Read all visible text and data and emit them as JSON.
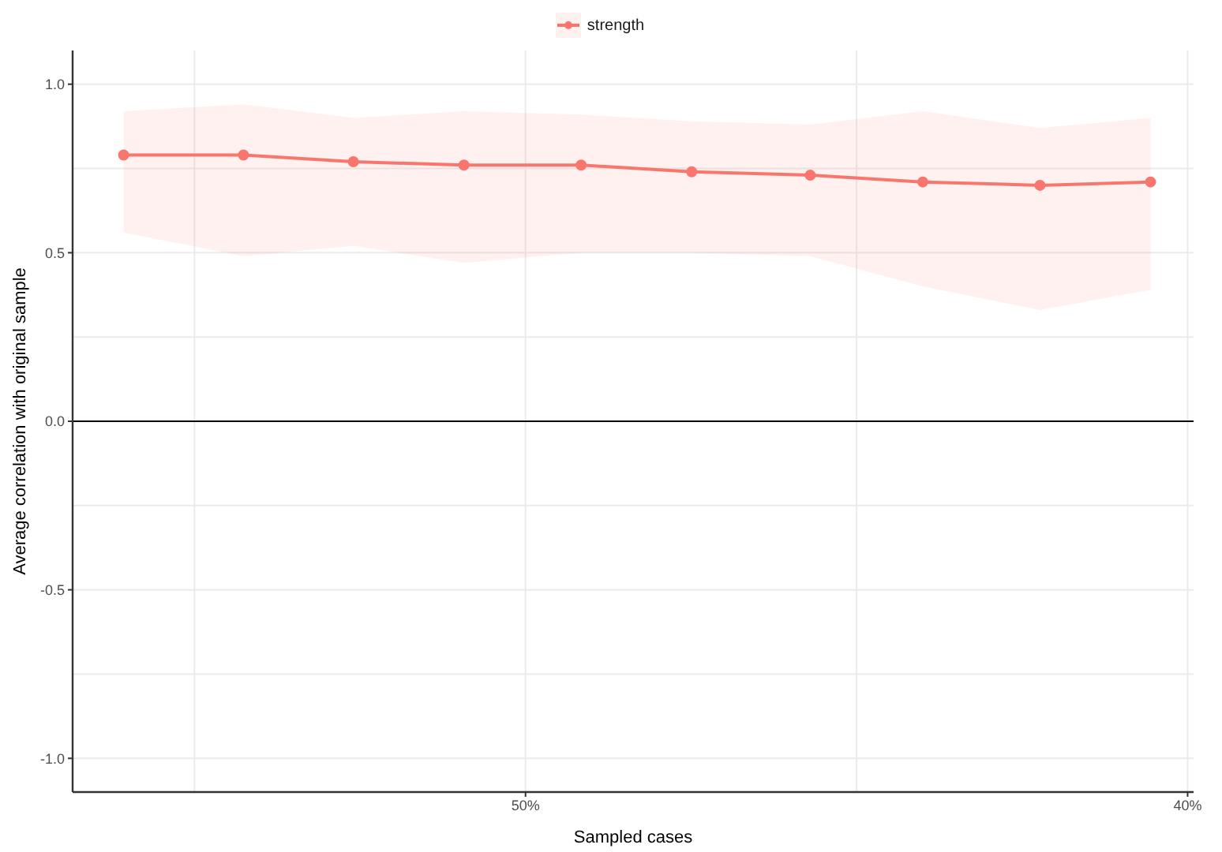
{
  "chart_data": {
    "type": "line",
    "xlabel": "Sampled cases",
    "ylabel": "Average correlation with original sample",
    "x": [
      56.07,
      54.26,
      52.6,
      50.93,
      49.16,
      47.49,
      45.7,
      44.0,
      42.23,
      40.56
    ],
    "series": [
      {
        "name": "strength",
        "color": "#f8766d",
        "values": [
          0.79,
          0.79,
          0.77,
          0.76,
          0.76,
          0.74,
          0.73,
          0.71,
          0.7,
          0.71
        ],
        "lower": [
          0.56,
          0.49,
          0.52,
          0.47,
          0.5,
          0.5,
          0.49,
          0.4,
          0.33,
          0.39
        ],
        "upper": [
          0.92,
          0.94,
          0.9,
          0.92,
          0.91,
          0.89,
          0.88,
          0.92,
          0.87,
          0.9
        ]
      }
    ],
    "xlim": [
      56.84,
      39.91
    ],
    "xticks": [
      {
        "value": 50,
        "label": "50%"
      },
      {
        "value": 40,
        "label": "40%"
      }
    ],
    "ylim": [
      -1.1,
      1.1
    ],
    "yticks": [
      {
        "value": -1,
        "label": "-1.0"
      },
      {
        "value": -0.5,
        "label": "-0.5"
      },
      {
        "value": 0,
        "label": "0.0"
      },
      {
        "value": 0.5,
        "label": "0.5"
      },
      {
        "value": 1,
        "label": "1.0"
      }
    ],
    "ref_lines": [
      {
        "axis": "y",
        "value": 0,
        "color": "#000000"
      }
    ],
    "grid": true,
    "legend": "top",
    "marker": "circle",
    "line_style": "solid"
  }
}
